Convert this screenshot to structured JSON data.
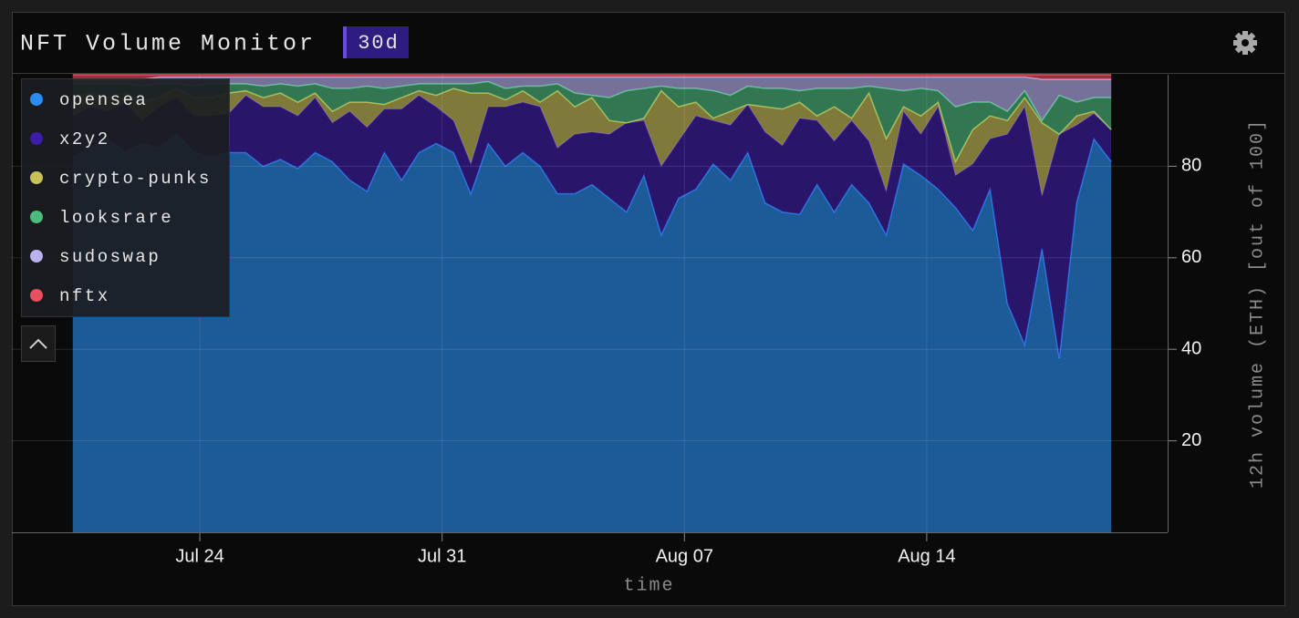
{
  "header": {
    "title": "NFT Volume Monitor",
    "range": "30d"
  },
  "chart_data": {
    "type": "area",
    "stacked": true,
    "x_label": "time",
    "y_label": "12h volume (ETH) [out of 100]",
    "x": [
      20.33,
      20.83,
      21.33,
      21.83,
      22.33,
      22.83,
      23.33,
      23.83,
      24.33,
      24.83,
      25.33,
      25.83,
      26.33,
      26.83,
      27.33,
      27.83,
      28.33,
      28.83,
      29.33,
      29.83,
      30.33,
      30.83,
      31.33,
      31.83,
      32.33,
      32.83,
      33.33,
      33.83,
      34.33,
      34.83,
      35.33,
      35.83,
      36.33,
      36.83,
      37.33,
      37.83,
      38.33,
      38.83,
      39.33,
      39.83,
      40.33,
      40.83,
      41.33,
      41.83,
      42.33,
      42.83,
      43.33,
      43.83,
      44.33,
      44.83,
      45.33,
      45.83,
      46.33,
      46.83,
      47.33,
      47.83,
      48.33,
      48.83,
      49.33,
      49.83,
      50.33
    ],
    "xlim": [
      18.57,
      51.96
    ],
    "xticks": [
      {
        "value": 24,
        "label": "Jul 24"
      },
      {
        "value": 31,
        "label": "Jul 31"
      },
      {
        "value": 38,
        "label": "Aug 07"
      },
      {
        "value": 45,
        "label": "Aug 14"
      }
    ],
    "ylim": [
      0,
      100
    ],
    "yticks": [
      20,
      40,
      60,
      80
    ],
    "grid": true,
    "legend": "upper left",
    "series": [
      {
        "name": "opensea",
        "color": "#2a8cf0",
        "values": [
          82,
          84,
          86,
          83,
          85,
          84,
          87,
          83,
          82,
          83,
          83,
          80,
          81.5,
          79.5,
          83,
          81,
          77,
          74.5,
          83,
          77,
          83,
          85,
          83,
          74,
          85,
          80,
          83,
          80,
          74,
          74,
          76,
          73,
          70,
          78,
          65,
          73,
          75,
          80.5,
          77,
          83,
          72,
          70,
          69.5,
          76,
          70,
          76,
          72,
          65,
          80.5,
          78,
          75,
          71,
          66,
          75,
          50,
          41,
          62,
          38,
          72,
          86,
          81
        ]
      },
      {
        "name": "x2y2",
        "color": "#3d1ea8",
        "values": [
          9,
          9,
          6,
          11,
          5,
          9,
          8,
          8,
          9,
          8.5,
          12.5,
          13,
          11.5,
          11.5,
          12,
          8.5,
          15,
          14,
          9.5,
          15.5,
          12.5,
          8,
          7,
          6.5,
          8,
          13,
          11,
          13,
          10,
          13,
          11.5,
          14,
          19.5,
          12,
          15,
          12.5,
          16,
          9.5,
          12,
          10.5,
          15.5,
          14.5,
          21,
          14,
          15.5,
          14,
          13.5,
          9.5,
          11.5,
          9,
          18,
          7,
          14.5,
          11,
          37,
          52,
          11.5,
          49,
          17,
          5.5,
          7
        ]
      },
      {
        "name": "crypto-punks",
        "color": "#c8c058",
        "values": [
          4,
          3,
          3,
          2,
          4,
          2,
          2,
          4,
          4,
          4.5,
          1,
          2,
          3,
          3,
          1,
          2.5,
          2,
          5.5,
          1,
          2.5,
          1,
          2.5,
          7,
          15.5,
          3,
          1.5,
          2.5,
          1,
          12.5,
          6,
          7.5,
          3,
          0,
          0.5,
          16.5,
          7.5,
          3,
          0.5,
          3,
          0,
          5.5,
          8,
          3.5,
          1,
          7.5,
          0.5,
          10.5,
          11.5,
          1,
          4,
          1,
          3,
          7.5,
          5,
          3,
          2,
          16,
          0,
          2,
          0.5,
          0
        ]
      },
      {
        "name": "looksrare",
        "color": "#4cbc7e",
        "values": [
          3,
          2,
          3,
          2,
          3.5,
          3,
          1,
          2.5,
          3,
          2,
          1.5,
          2.5,
          2,
          3.5,
          2,
          5,
          3,
          3.5,
          3.5,
          2.5,
          1.5,
          2.5,
          1,
          2,
          2.5,
          2.5,
          1,
          3.5,
          1.5,
          3,
          0.5,
          5,
          7,
          6.5,
          1,
          4,
          3,
          6,
          3.5,
          4,
          4,
          4.5,
          2.5,
          6,
          4,
          6.5,
          1.5,
          11,
          3.5,
          6,
          2.5,
          12,
          6,
          3,
          2,
          1.5,
          0.5,
          8.5,
          3,
          3,
          7
        ]
      },
      {
        "name": "sudoswap",
        "color": "#b8b2f0",
        "values": [
          1,
          1,
          1,
          1,
          1.5,
          1.5,
          1.5,
          2,
          1.5,
          1.5,
          1.5,
          2,
          1.5,
          2,
          1.5,
          2.5,
          2.5,
          2,
          2.5,
          2,
          1.5,
          1.5,
          1.5,
          1.5,
          1,
          2.5,
          2,
          2,
          1.5,
          3.5,
          4,
          4.5,
          3,
          2.5,
          2,
          2.5,
          2.5,
          3,
          4,
          2,
          2.5,
          2.5,
          3,
          2.5,
          2.5,
          2.5,
          2,
          2.5,
          3,
          2.5,
          3,
          6.5,
          5.5,
          5.5,
          7.5,
          3,
          9,
          3.5,
          5,
          4,
          4
        ]
      },
      {
        "name": "nftx",
        "color": "#e8505f",
        "values": [
          1,
          1,
          1,
          1,
          1,
          0.5,
          0.5,
          0.5,
          0.5,
          0.5,
          0.5,
          0.5,
          0.5,
          0.5,
          0.5,
          0.5,
          0.5,
          0.5,
          0.5,
          0.5,
          0.5,
          0.5,
          0.5,
          0.5,
          0.5,
          0.5,
          0.5,
          0.5,
          0.5,
          0.5,
          0.5,
          0.5,
          0.5,
          0.5,
          0.5,
          0.5,
          0.5,
          0.5,
          0.5,
          0.5,
          0.5,
          0.5,
          0.5,
          0.5,
          0.5,
          0.5,
          0.5,
          0.5,
          0.5,
          0.5,
          0.5,
          0.5,
          0.5,
          0.5,
          0.5,
          0.5,
          1,
          1,
          1,
          1,
          1
        ]
      }
    ]
  }
}
